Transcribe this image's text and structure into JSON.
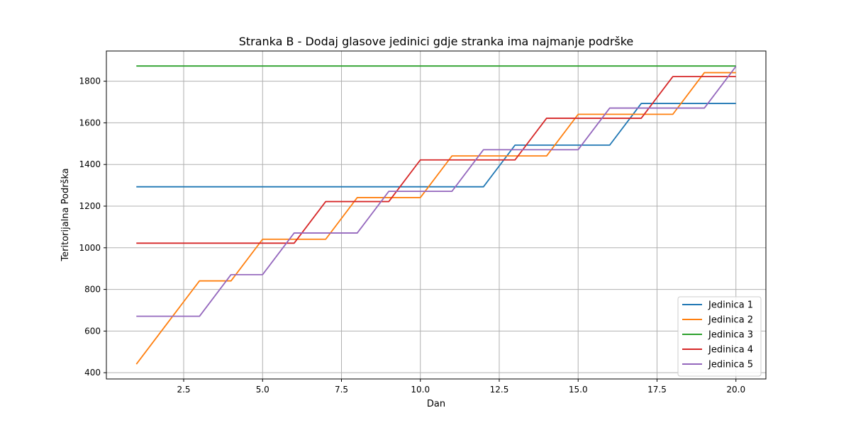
{
  "chart_data": {
    "type": "line",
    "title": "Stranka B - Dodaj glasove jedinici gdje stranka ima najmanje podrške",
    "xlabel": "Dan",
    "ylabel": "Teritorijalna Podrška",
    "xlim": [
      0.05,
      20.95
    ],
    "ylim": [
      370,
      1945
    ],
    "xticks": [
      2.5,
      5.0,
      7.5,
      10.0,
      12.5,
      15.0,
      17.5,
      20.0
    ],
    "xtick_labels": [
      "2.5",
      "5.0",
      "7.5",
      "10.0",
      "12.5",
      "15.0",
      "17.5",
      "20.0"
    ],
    "yticks": [
      400,
      600,
      800,
      1000,
      1200,
      1400,
      1600,
      1800
    ],
    "ytick_labels": [
      "400",
      "600",
      "800",
      "1000",
      "1200",
      "1400",
      "1600",
      "1800"
    ],
    "grid": true,
    "legend_position": "bottom-right",
    "x": [
      1,
      2,
      3,
      4,
      5,
      6,
      7,
      8,
      9,
      10,
      11,
      12,
      13,
      14,
      15,
      16,
      17,
      18,
      19,
      20
    ],
    "series": [
      {
        "name": "Jedinica 1",
        "color": "#1f77b4",
        "values": [
          1293,
          1293,
          1293,
          1293,
          1293,
          1293,
          1293,
          1293,
          1293,
          1293,
          1293,
          1293,
          1493,
          1493,
          1493,
          1493,
          1693,
          1693,
          1693,
          1693
        ]
      },
      {
        "name": "Jedinica 2",
        "color": "#ff7f0e",
        "values": [
          441,
          641,
          841,
          841,
          1041,
          1041,
          1041,
          1241,
          1241,
          1241,
          1441,
          1441,
          1441,
          1441,
          1641,
          1641,
          1641,
          1641,
          1841,
          1841
        ]
      },
      {
        "name": "Jedinica 3",
        "color": "#2ca02c",
        "values": [
          1873,
          1873,
          1873,
          1873,
          1873,
          1873,
          1873,
          1873,
          1873,
          1873,
          1873,
          1873,
          1873,
          1873,
          1873,
          1873,
          1873,
          1873,
          1873,
          1873
        ]
      },
      {
        "name": "Jedinica 4",
        "color": "#d62728",
        "values": [
          1022,
          1022,
          1022,
          1022,
          1022,
          1022,
          1222,
          1222,
          1222,
          1422,
          1422,
          1422,
          1422,
          1622,
          1622,
          1622,
          1622,
          1822,
          1822,
          1822
        ]
      },
      {
        "name": "Jedinica 5",
        "color": "#9467bd",
        "values": [
          671,
          671,
          671,
          871,
          871,
          1071,
          1071,
          1071,
          1271,
          1271,
          1271,
          1471,
          1471,
          1471,
          1471,
          1671,
          1671,
          1671,
          1671,
          1871
        ]
      }
    ]
  }
}
